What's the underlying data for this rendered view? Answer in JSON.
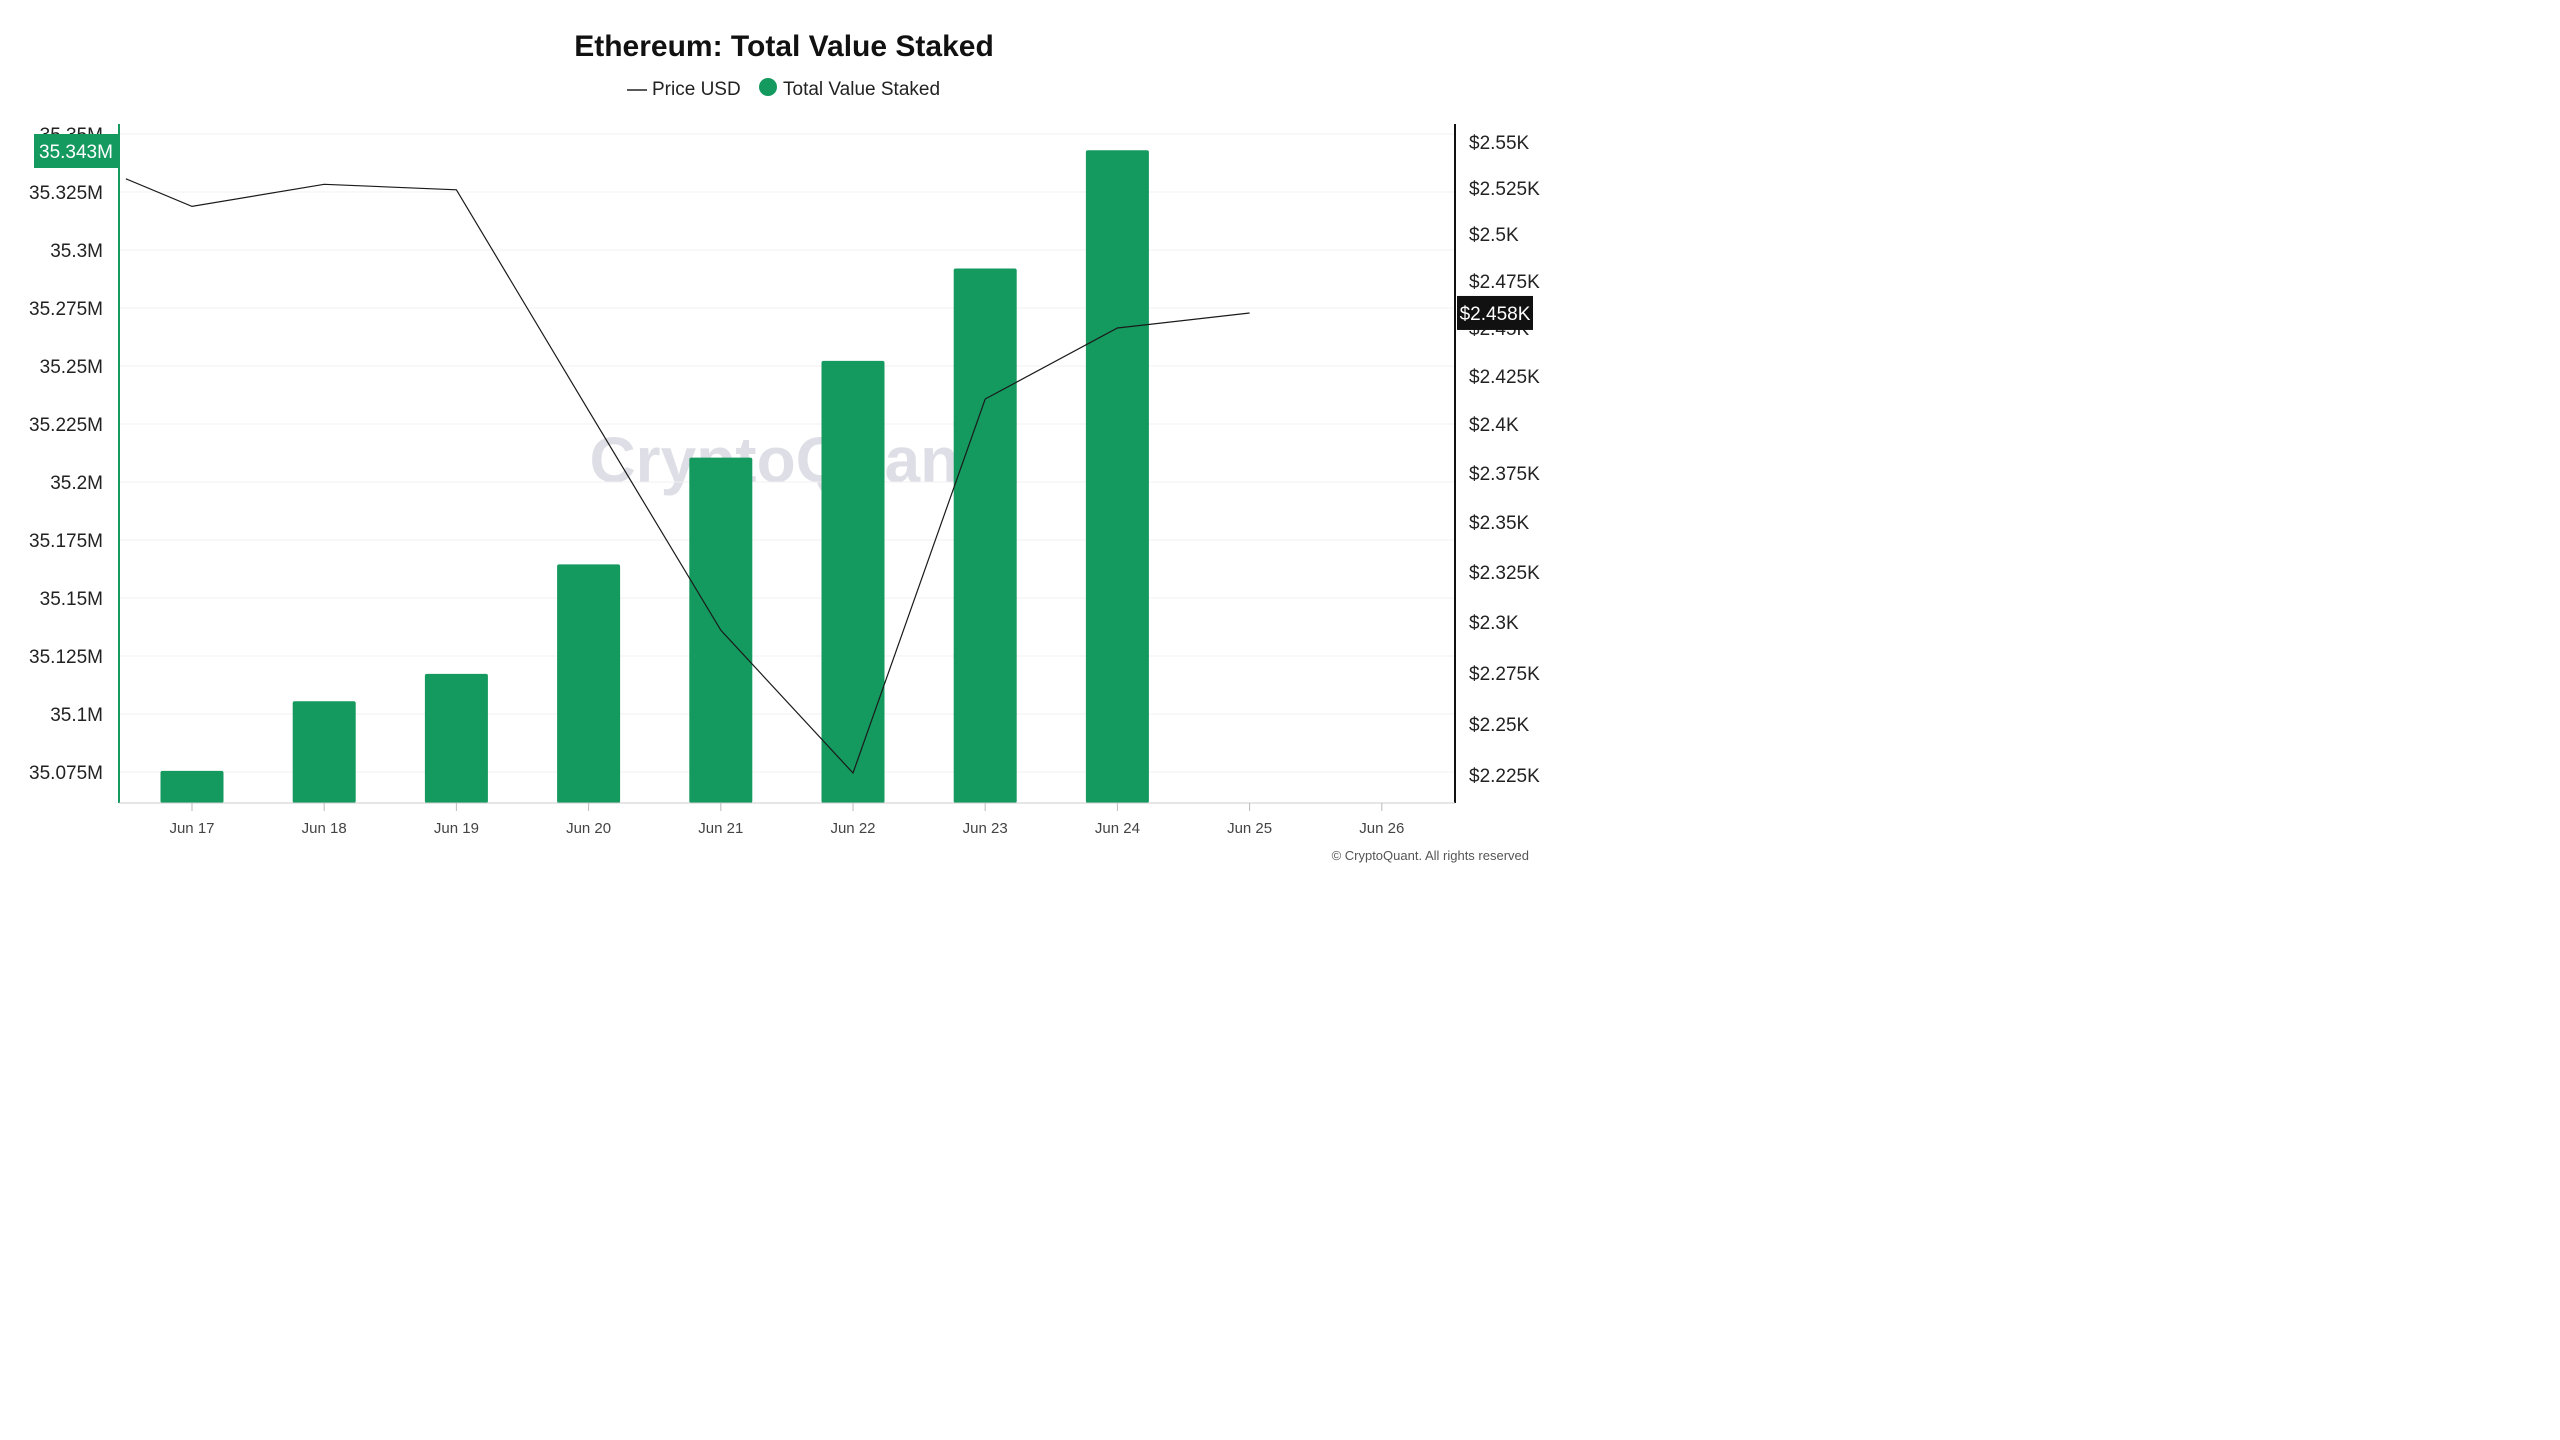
{
  "chart_data": {
    "type": "bar",
    "title": "Ethereum: Total Value Staked",
    "categories": [
      "Jun 17",
      "Jun 18",
      "Jun 19",
      "Jun 20",
      "Jun 21",
      "Jun 22",
      "Jun 23",
      "Jun 24",
      "Jun 25",
      "Jun 26"
    ],
    "series": [
      {
        "name": "Total Value Staked",
        "kind": "bar",
        "axis": "left",
        "color": "#14995f",
        "values": [
          35.0755,
          35.1055,
          35.1173,
          35.1645,
          35.2105,
          35.2522,
          35.292,
          35.343,
          null,
          null
        ]
      },
      {
        "name": "Price USD",
        "kind": "line",
        "axis": "right",
        "color": "#1a1a1a",
        "x_positions": [
          -0.5,
          0,
          1,
          2,
          3,
          4,
          5,
          6,
          7,
          8
        ],
        "values": [
          2.53,
          2.515,
          2.527,
          2.524,
          2.407,
          2.296,
          2.226,
          2.413,
          2.45,
          2.458
        ]
      }
    ],
    "y_left": {
      "ticks": [
        "35.075M",
        "35.1M",
        "35.125M",
        "35.15M",
        "35.175M",
        "35.2M",
        "35.225M",
        "35.25M",
        "35.275M",
        "35.3M",
        "35.325M",
        "35.35M"
      ],
      "tick_values": [
        35.075,
        35.1,
        35.125,
        35.15,
        35.175,
        35.2,
        35.225,
        35.25,
        35.275,
        35.3,
        35.325,
        35.35
      ],
      "ylim": [
        35.062,
        35.35
      ],
      "current_label": "35.343M",
      "current_value": 35.343,
      "badge_color": "#14995f"
    },
    "y_right": {
      "ticks": [
        "$2.225K",
        "$2.25K",
        "$2.275K",
        "$2.3K",
        "$2.325K",
        "$2.35K",
        "$2.375K",
        "$2.4K",
        "$2.425K",
        "$2.45K",
        "$2.475K",
        "$2.5K",
        "$2.525K",
        "$2.55K"
      ],
      "tick_values": [
        2.225,
        2.25,
        2.275,
        2.3,
        2.325,
        2.35,
        2.375,
        2.4,
        2.425,
        2.45,
        2.475,
        2.5,
        2.525,
        2.55
      ],
      "current_label": "$2.458K",
      "current_value": 2.458,
      "badge_color": "#111111"
    },
    "legend": {
      "placement": "top-center",
      "items": [
        {
          "name": "Price USD",
          "marker": "line"
        },
        {
          "name": "Total Value Staked",
          "marker": "dot"
        }
      ]
    },
    "grid": true
  },
  "watermark": "CryptoQuant",
  "copyright": "© CryptoQuant. All rights reserved"
}
